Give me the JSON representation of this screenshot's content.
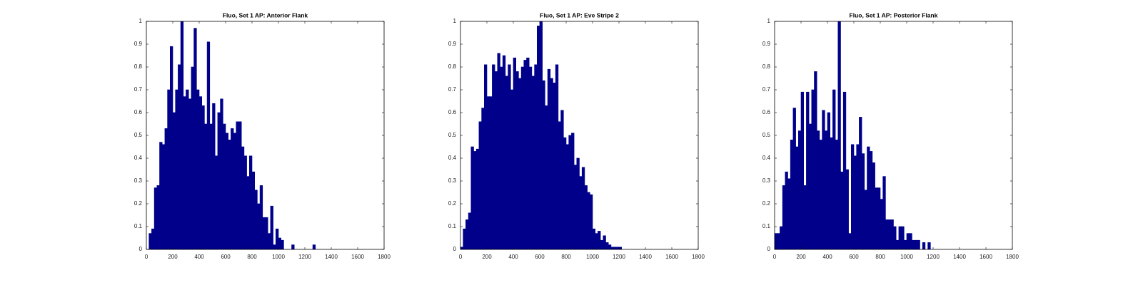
{
  "chart_data": [
    {
      "type": "histogram",
      "title": "Fluo, Set 1 AP: Anterior Flank",
      "color": "#00008b",
      "bins": [
        0,
        20,
        40,
        60,
        80,
        100,
        120,
        140,
        160,
        180,
        200,
        220,
        240,
        260,
        280,
        300,
        320,
        340,
        360,
        380,
        400,
        420,
        440,
        460,
        480,
        500,
        520,
        540,
        560,
        580,
        600,
        620,
        640,
        660,
        680,
        700,
        720,
        740,
        760,
        780,
        800,
        820,
        840,
        860,
        880,
        900,
        920,
        940,
        960,
        980,
        1000,
        1020,
        1040,
        1060,
        1080,
        1100,
        1120,
        1140,
        1160,
        1180,
        1200,
        1220,
        1240,
        1260,
        1280,
        1300,
        1320,
        1340,
        1360,
        1380,
        1400,
        1420,
        1440,
        1460,
        1480,
        1500,
        1520,
        1540,
        1560,
        1580,
        1600,
        1620,
        1640,
        1660,
        1680,
        1700,
        1720,
        1740,
        1760,
        1780,
        1800
      ],
      "values": [
        0,
        0.07,
        0.09,
        0.27,
        0.28,
        0.47,
        0.46,
        0.53,
        0.7,
        0.89,
        0.6,
        0.7,
        0.81,
        1.0,
        0.67,
        0.7,
        0.66,
        0.8,
        0.97,
        0.7,
        0.67,
        0.63,
        0.55,
        0.91,
        0.55,
        0.64,
        0.41,
        0.6,
        0.66,
        0.55,
        0.51,
        0.48,
        0.53,
        0.51,
        0.56,
        0.56,
        0.45,
        0.41,
        0.32,
        0.41,
        0.34,
        0.26,
        0.2,
        0.28,
        0.14,
        0.14,
        0.07,
        0.19,
        0.02,
        0.09,
        0.05,
        0.04,
        0,
        0,
        0,
        0.02,
        0,
        0,
        0,
        0,
        0,
        0,
        0,
        0.02,
        0,
        0,
        0,
        0,
        0,
        0,
        0,
        0,
        0,
        0,
        0,
        0,
        0,
        0,
        0,
        0,
        0,
        0,
        0,
        0,
        0,
        0,
        0,
        0,
        0,
        0
      ],
      "xlim": [
        0,
        1800
      ],
      "xticks": [
        0,
        200,
        400,
        600,
        800,
        1000,
        1200,
        1400,
        1600,
        1800
      ],
      "ylim": [
        0,
        1
      ],
      "yticks": [
        0,
        0.1,
        0.2,
        0.3,
        0.4,
        0.5,
        0.6,
        0.7,
        0.8,
        0.9,
        1
      ]
    },
    {
      "type": "histogram",
      "title": "Fluo, Set 1 AP: Eve Stripe 2",
      "color": "#00008b",
      "bins": [
        0,
        20,
        40,
        60,
        80,
        100,
        120,
        140,
        160,
        180,
        200,
        220,
        240,
        260,
        280,
        300,
        320,
        340,
        360,
        380,
        400,
        420,
        440,
        460,
        480,
        500,
        520,
        540,
        560,
        580,
        600,
        620,
        640,
        660,
        680,
        700,
        720,
        740,
        760,
        780,
        800,
        820,
        840,
        860,
        880,
        900,
        920,
        940,
        960,
        980,
        1000,
        1020,
        1040,
        1060,
        1080,
        1100,
        1120,
        1140,
        1160,
        1180,
        1200,
        1220,
        1240,
        1260,
        1280,
        1300,
        1320,
        1340,
        1360,
        1380,
        1400,
        1420,
        1440,
        1460,
        1480,
        1500,
        1520,
        1540,
        1560,
        1580,
        1600,
        1620,
        1640,
        1660,
        1680,
        1700,
        1720,
        1740,
        1760,
        1780,
        1800
      ],
      "values": [
        0.01,
        0.09,
        0.13,
        0.16,
        0.45,
        0.43,
        0.44,
        0.56,
        0.62,
        0.81,
        0.67,
        0.67,
        0.81,
        0.78,
        0.86,
        0.8,
        0.85,
        0.76,
        0.81,
        0.7,
        0.84,
        0.78,
        0.75,
        0.8,
        0.83,
        0.84,
        0.8,
        0.76,
        0.81,
        0.98,
        1.0,
        0.74,
        0.63,
        0.79,
        0.75,
        0.73,
        0.81,
        0.56,
        0.61,
        0.49,
        0.46,
        0.5,
        0.51,
        0.37,
        0.4,
        0.32,
        0.36,
        0.28,
        0.25,
        0.24,
        0.09,
        0.07,
        0.08,
        0.04,
        0.06,
        0.03,
        0.02,
        0.01,
        0.01,
        0.01,
        0.01,
        0,
        0,
        0,
        0,
        0,
        0,
        0,
        0,
        0,
        0,
        0,
        0,
        0,
        0,
        0,
        0,
        0,
        0,
        0,
        0,
        0,
        0,
        0,
        0,
        0,
        0,
        0,
        0,
        0
      ],
      "xlim": [
        0,
        1800
      ],
      "xticks": [
        0,
        200,
        400,
        600,
        800,
        1000,
        1200,
        1400,
        1600,
        1800
      ],
      "ylim": [
        0,
        1
      ],
      "yticks": [
        0,
        0.1,
        0.2,
        0.3,
        0.4,
        0.5,
        0.6,
        0.7,
        0.8,
        0.9,
        1
      ]
    },
    {
      "type": "histogram",
      "title": "Fluo, Set 1 AP: Posterior Flank",
      "color": "#00008b",
      "bins": [
        0,
        20,
        40,
        60,
        80,
        100,
        120,
        140,
        160,
        180,
        200,
        220,
        240,
        260,
        280,
        300,
        320,
        340,
        360,
        380,
        400,
        420,
        440,
        460,
        480,
        500,
        520,
        540,
        560,
        580,
        600,
        620,
        640,
        660,
        680,
        700,
        720,
        740,
        760,
        780,
        800,
        820,
        840,
        860,
        880,
        900,
        920,
        940,
        960,
        980,
        1000,
        1020,
        1040,
        1060,
        1080,
        1100,
        1120,
        1140,
        1160,
        1180,
        1200,
        1220,
        1240,
        1260,
        1280,
        1300,
        1320,
        1340,
        1360,
        1380,
        1400,
        1420,
        1440,
        1460,
        1480,
        1500,
        1520,
        1540,
        1560,
        1580,
        1600,
        1620,
        1640,
        1660,
        1680,
        1700,
        1720,
        1740,
        1760,
        1780,
        1800
      ],
      "values": [
        0.07,
        0.07,
        0.1,
        0.28,
        0.34,
        0.31,
        0.48,
        0.62,
        0.45,
        0.52,
        0.69,
        0.28,
        0.69,
        0.55,
        0.7,
        0.78,
        0.52,
        0.48,
        0.61,
        0.52,
        0.6,
        0.49,
        0.7,
        0.48,
        1.0,
        0.34,
        0.69,
        0.35,
        0.07,
        0.46,
        0.41,
        0.46,
        0.58,
        0.42,
        0.26,
        0.45,
        0.43,
        0.38,
        0.27,
        0.27,
        0.22,
        0.32,
        0.13,
        0.13,
        0.13,
        0.1,
        0.04,
        0.1,
        0.1,
        0.04,
        0.07,
        0.07,
        0.04,
        0.04,
        0.04,
        0,
        0.03,
        0,
        0.03,
        0,
        0,
        0,
        0,
        0,
        0,
        0,
        0,
        0,
        0,
        0,
        0,
        0,
        0,
        0,
        0,
        0,
        0,
        0,
        0,
        0,
        0,
        0,
        0,
        0,
        0,
        0,
        0,
        0,
        0,
        0
      ],
      "xlim": [
        0,
        1800
      ],
      "xticks": [
        0,
        200,
        400,
        600,
        800,
        1000,
        1200,
        1400,
        1600,
        1800
      ],
      "ylim": [
        0,
        1
      ],
      "yticks": [
        0,
        0.1,
        0.2,
        0.3,
        0.4,
        0.5,
        0.6,
        0.7,
        0.8,
        0.9,
        1
      ]
    }
  ]
}
